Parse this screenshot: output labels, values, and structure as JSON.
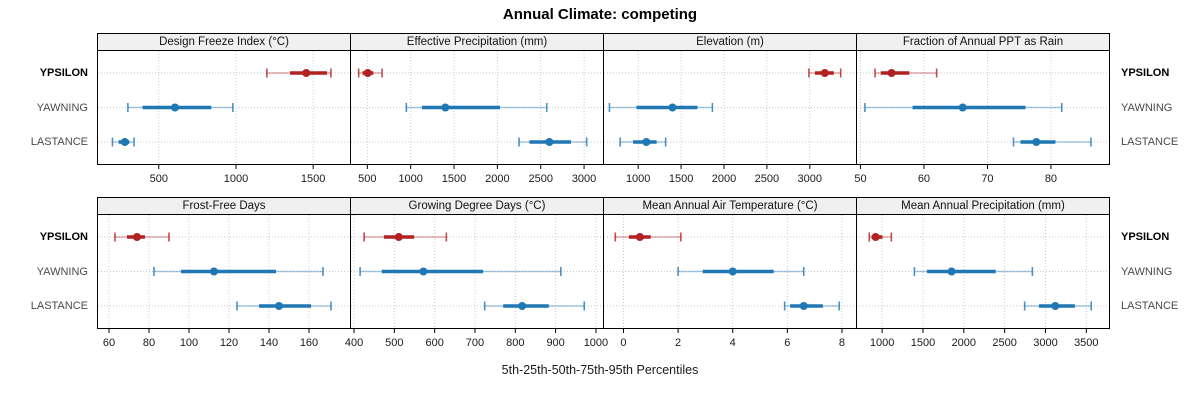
{
  "title": "Annual Climate: competing",
  "axis_label": "5th-25th-50th-75th-95th Percentiles",
  "categories": [
    "YPSILON",
    "YAWNING",
    "LASTANCE"
  ],
  "emphasized_category": "YPSILON",
  "colors": {
    "ypsilon_red": "#b22222",
    "series_blue": "#1f77b4",
    "grid": "#c9c9c9",
    "strip_bg": "#f0f0f0",
    "panel_border": "#000000"
  },
  "series_colors": {
    "YPSILON": "#b22222",
    "YAWNING": "#1f77b4",
    "LASTANCE": "#1f77b4"
  },
  "chart_data": {
    "type": "dotplot-percentiles",
    "statistic_labels": [
      "5th",
      "25th",
      "50th",
      "75th",
      "95th"
    ],
    "layout": {
      "rows": 2,
      "cols": 4,
      "grid": "dotted",
      "category_labels_both_sides": true,
      "row_fracs": [
        0.2,
        0.5,
        0.8
      ]
    },
    "panels": [
      {
        "title": "Design Freeze Index (°C)",
        "ticks": [
          500,
          1000,
          1500
        ],
        "xlim": [
          100,
          1745
        ],
        "series": {
          "YPSILON": [
            1200,
            1350,
            1455,
            1590,
            1615
          ],
          "YAWNING": [
            300,
            395,
            605,
            840,
            980
          ],
          "LASTANCE": [
            200,
            240,
            280,
            310,
            340
          ]
        }
      },
      {
        "title": "Effective Precipitation (mm)",
        "ticks": [
          500,
          1000,
          1500,
          2000,
          2500,
          3000
        ],
        "xlim": [
          300,
          3230
        ],
        "series": {
          "YPSILON": [
            400,
            445,
            505,
            570,
            670
          ],
          "YAWNING": [
            950,
            1130,
            1400,
            2030,
            2570
          ],
          "LASTANCE": [
            2250,
            2370,
            2600,
            2850,
            3030
          ]
        }
      },
      {
        "title": "Elevation (m)",
        "ticks": [
          1000,
          1500,
          2000,
          2500,
          3000
        ],
        "xlim": [
          590,
          3550
        ],
        "series": {
          "YPSILON": [
            2990,
            3060,
            3175,
            3280,
            3360
          ],
          "YAWNING": [
            665,
            980,
            1400,
            1690,
            1865
          ],
          "LASTANCE": [
            790,
            940,
            1095,
            1215,
            1320
          ]
        }
      },
      {
        "title": "Fraction of Annual PPT as Rain",
        "ticks": [
          50,
          60,
          70,
          80
        ],
        "xlim": [
          49.3,
          89.3
        ],
        "series": {
          "YPSILON": [
            52.3,
            53.2,
            54.9,
            57.7,
            62
          ],
          "YAWNING": [
            50.7,
            58.2,
            66.1,
            76,
            81.7
          ],
          "LASTANCE": [
            74.1,
            75.2,
            77.7,
            80.7,
            86.3
          ]
        }
      },
      {
        "title": "Frost-Free Days",
        "ticks": [
          60,
          80,
          100,
          120,
          140,
          160
        ],
        "xlim": [
          54,
          181
        ],
        "series": {
          "YPSILON": [
            63,
            69,
            74,
            78,
            90
          ],
          "YAWNING": [
            82.5,
            96,
            112.5,
            143.5,
            167
          ],
          "LASTANCE": [
            124,
            135,
            145,
            161,
            171
          ]
        }
      },
      {
        "title": "Growing Degree Days (°C)",
        "ticks": [
          400,
          500,
          600,
          700,
          800,
          900,
          1000
        ],
        "xlim": [
          390,
          1020
        ],
        "series": {
          "YPSILON": [
            425,
            474,
            511,
            549,
            629
          ],
          "YAWNING": [
            415,
            469,
            572,
            720,
            913
          ],
          "LASTANCE": [
            724,
            770,
            817,
            883,
            971
          ]
        }
      },
      {
        "title": "Mean Annual Air Temperature (°C)",
        "ticks": [
          0,
          2,
          4,
          6,
          8
        ],
        "xlim": [
          -0.75,
          8.55
        ],
        "series": {
          "YPSILON": [
            -0.3,
            0.2,
            0.6,
            1.0,
            2.1
          ],
          "YAWNING": [
            2.0,
            2.9,
            4.0,
            5.5,
            6.6
          ],
          "LASTANCE": [
            5.9,
            6.1,
            6.6,
            7.3,
            7.9
          ]
        }
      },
      {
        "title": "Mean Annual Precipitation (mm)",
        "ticks": [
          1000,
          1500,
          2000,
          2500,
          3000,
          3500
        ],
        "xlim": [
          680,
          3790
        ],
        "series": {
          "YPSILON": [
            842,
            870,
            920,
            1005,
            1113
          ],
          "YAWNING": [
            1395,
            1550,
            1850,
            2390,
            2840
          ],
          "LASTANCE": [
            2745,
            2920,
            3120,
            3360,
            3560
          ]
        }
      }
    ]
  }
}
